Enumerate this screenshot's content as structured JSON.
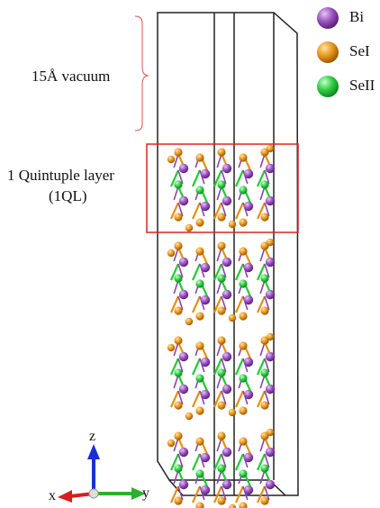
{
  "annotations": {
    "vacuum": "15Å vacuum",
    "quintuple_line1": "1 Quintuple layer",
    "quintuple_line2": "(1QL)"
  },
  "legend": [
    {
      "label": "Bi",
      "color": "#9b59b6"
    },
    {
      "label": "SeI",
      "color": "#e8961a"
    },
    {
      "label": "SeII",
      "color": "#2ecc40"
    }
  ],
  "axes": {
    "z": "z",
    "x": "x",
    "y": "y"
  },
  "colors": {
    "bi": "#8e44ad",
    "se1": "#e39212",
    "se2": "#22cc33",
    "highlight": "#dd2222",
    "bracket": "#e05050",
    "cell": "#222222"
  },
  "quintuple_layers": 4
}
